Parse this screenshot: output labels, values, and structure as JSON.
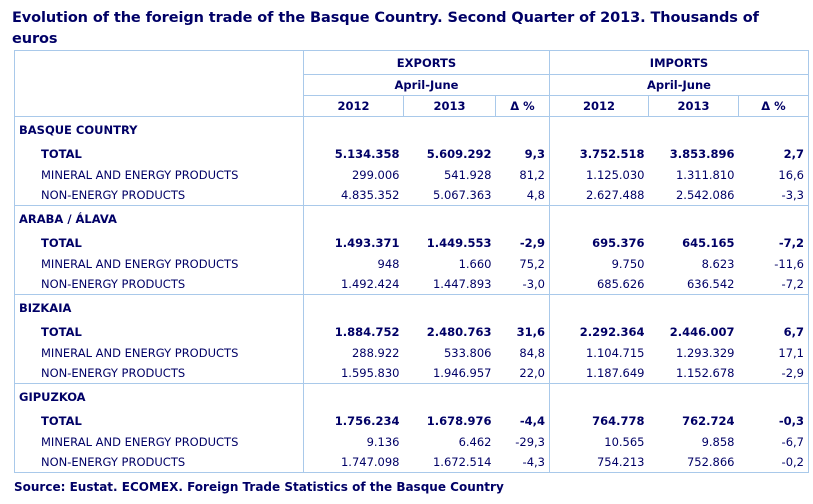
{
  "title": "Evolution of the foreign trade of the Basque Country. Second Quarter of 2013.  Thousands of euros",
  "header": {
    "exports": "EXPORTS",
    "imports": "IMPORTS",
    "period": "April-June",
    "years": [
      "2012",
      "2013",
      "Δ %"
    ]
  },
  "regions": [
    {
      "name": "BASQUE COUNTRY",
      "rows": [
        {
          "label": "TOTAL",
          "v": [
            "5.134.358",
            "5.609.292",
            "9,3",
            "3.752.518",
            "3.853.896",
            "2,7"
          ]
        },
        {
          "label": "MINERAL AND ENERGY PRODUCTS",
          "v": [
            "299.006",
            "541.928",
            "81,2",
            "1.125.030",
            "1.311.810",
            "16,6"
          ]
        },
        {
          "label": "NON-ENERGY PRODUCTS",
          "v": [
            "4.835.352",
            "5.067.363",
            "4,8",
            "2.627.488",
            "2.542.086",
            "-3,3"
          ]
        }
      ]
    },
    {
      "name": "ARABA / ÁLAVA",
      "rows": [
        {
          "label": "TOTAL",
          "v": [
            "1.493.371",
            "1.449.553",
            "-2,9",
            "695.376",
            "645.165",
            "-7,2"
          ]
        },
        {
          "label": "MINERAL AND ENERGY PRODUCTS",
          "v": [
            "948",
            "1.660",
            "75,2",
            "9.750",
            "8.623",
            "-11,6"
          ]
        },
        {
          "label": "NON-ENERGY PRODUCTS",
          "v": [
            "1.492.424",
            "1.447.893",
            "-3,0",
            "685.626",
            "636.542",
            "-7,2"
          ]
        }
      ]
    },
    {
      "name": "BIZKAIA",
      "rows": [
        {
          "label": "TOTAL",
          "v": [
            "1.884.752",
            "2.480.763",
            "31,6",
            "2.292.364",
            "2.446.007",
            "6,7"
          ]
        },
        {
          "label": "MINERAL AND ENERGY PRODUCTS",
          "v": [
            "288.922",
            "533.806",
            "84,8",
            "1.104.715",
            "1.293.329",
            "17,1"
          ]
        },
        {
          "label": "NON-ENERGY PRODUCTS",
          "v": [
            "1.595.830",
            "1.946.957",
            "22,0",
            "1.187.649",
            "1.152.678",
            "-2,9"
          ]
        }
      ]
    },
    {
      "name": "GIPUZKOA",
      "rows": [
        {
          "label": "TOTAL",
          "v": [
            "1.756.234",
            "1.678.976",
            "-4,4",
            "764.778",
            "762.724",
            "-0,3"
          ]
        },
        {
          "label": "MINERAL AND ENERGY PRODUCTS",
          "v": [
            "9.136",
            "6.462",
            "-29,3",
            "10.565",
            "9.858",
            "-6,7"
          ]
        },
        {
          "label": "NON-ENERGY PRODUCTS",
          "v": [
            "1.747.098",
            "1.672.514",
            "-4,3",
            "754.213",
            "752.866",
            "-0,2"
          ]
        }
      ]
    }
  ],
  "source": "Source: Eustat. ECOMEX. Foreign Trade Statistics of the Basque Country"
}
